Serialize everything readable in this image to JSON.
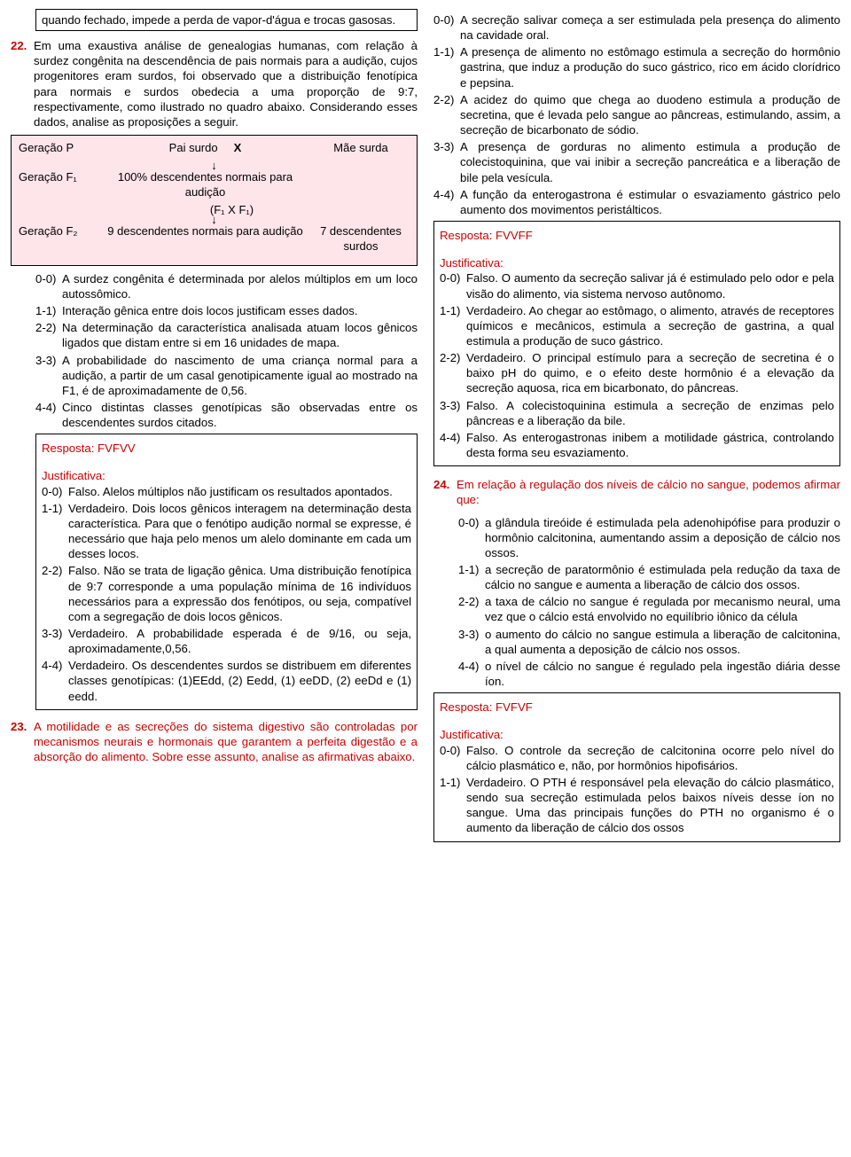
{
  "leftover_fragment": "quando fechado, impede a perda de vapor-d'água e trocas gasosas.",
  "q22": {
    "num": "22.",
    "stem": "Em uma exaustiva análise de genealogias humanas, com relação à surdez congênita na descendência de pais normais para a audição, cujos progenitores eram surdos, foi observado que a distribuição fenotípica para normais e surdos obedecia a uma proporção de 9:7, respectivamente, como ilustrado no quadro abaixo. Considerando esses dados, analise as proposições a seguir.",
    "cross": {
      "rowP_label": "Geração P",
      "rowP_left": "Pai surdo",
      "rowP_x": "X",
      "rowP_right": "Mãe surda",
      "rowF1_label": "Geração F₁",
      "rowF1_text": "100% descendentes normais para audição",
      "rowF1_cross": "(F₁ X F₁)",
      "rowF2_label": "Geração F₂",
      "rowF2_left": "9 descendentes normais para audição",
      "rowF2_right": "7 descendentes surdos"
    },
    "items": [
      {
        "lbl": "0-0)",
        "txt": "A surdez congênita é determinada por alelos múltiplos em um loco autossômico."
      },
      {
        "lbl": "1-1)",
        "txt": "Interação gênica entre dois locos justificam esses dados."
      },
      {
        "lbl": "2-2)",
        "txt": "Na determinação da característica analisada atuam locos gênicos ligados que distam entre si em 16 unidades de mapa."
      },
      {
        "lbl": "3-3)",
        "txt": "A probabilidade do nascimento de uma criança normal para a audição, a partir de um casal genotipicamente igual ao mostrado na F1, é de aproximadamente de 0,56."
      },
      {
        "lbl": "4-4)",
        "txt": "Cinco distintas classes genotípicas são observadas entre os descendentes surdos citados."
      }
    ],
    "resposta": "Resposta: FVFVV",
    "just_label": "Justificativa:",
    "justs": [
      {
        "lbl": "0-0)",
        "txt": "Falso. Alelos múltiplos não justificam os resultados apontados."
      },
      {
        "lbl": "1-1)",
        "txt": "Verdadeiro. Dois locos gênicos interagem na determinação desta característica. Para que o fenótipo audição normal se expresse, é necessário que haja pelo menos um alelo dominante em cada um desses locos."
      },
      {
        "lbl": "2-2)",
        "txt": "Falso. Não se trata de ligação gênica. Uma distribuição fenotípica de 9:7 corresponde a uma população mínima de 16 indivíduos necessários para a expressão dos fenótipos, ou seja, compatível com a segregação de dois locos gênicos."
      },
      {
        "lbl": "3-3)",
        "txt": "Verdadeiro. A probabilidade esperada é de 9/16, ou seja, aproximadamente,0,56."
      },
      {
        "lbl": "4-4)",
        "txt": "Verdadeiro. Os descendentes surdos se distribuem em diferentes classes genotípicas: (1)EEdd, (2) Eedd, (1) eeDD, (2) eeDd e (1) eedd."
      }
    ]
  },
  "q23": {
    "num": "23.",
    "stem": "A motilidade e as secreções do sistema digestivo são controladas por mecanismos neurais e hormonais que garantem a perfeita digestão e a absorção do alimento. Sobre esse assunto, analise as afirmativas abaixo.",
    "items": [
      {
        "lbl": "0-0)",
        "txt": "A secreção salivar começa a ser estimulada pela presença do alimento na cavidade oral."
      },
      {
        "lbl": "1-1)",
        "txt": "A presença de alimento no estômago estimula a secreção do hormônio gastrina, que induz a produção do suco gástrico, rico em ácido clorídrico e pepsina."
      },
      {
        "lbl": "2-2)",
        "txt": "A acidez do quimo que chega ao duodeno estimula a produção de secretina, que é levada pelo sangue ao pâncreas, estimulando, assim, a secreção de bicarbonato de sódio."
      },
      {
        "lbl": "3-3)",
        "txt": "A presença de gorduras no alimento estimula a produção de colecistoquinina, que vai inibir a secreção pancreática e a liberação de bile pela vesícula."
      },
      {
        "lbl": "4-4)",
        "txt": "A função da enterogastrona é estimular o esvaziamento gástrico pelo aumento dos movimentos peristálticos."
      }
    ],
    "resposta": "Resposta: FVVFF",
    "just_label": "Justificativa:",
    "justs": [
      {
        "lbl": "0-0)",
        "txt": "Falso. O aumento da secreção salivar já é estimulado pelo odor e pela visão do alimento, via sistema nervoso autônomo."
      },
      {
        "lbl": "1-1)",
        "txt": "Verdadeiro. Ao chegar ao estômago, o alimento, através de receptores químicos e mecânicos, estimula a secreção de gastrina, a qual estimula a produção de suco gástrico."
      },
      {
        "lbl": "2-2)",
        "txt": "Verdadeiro. O principal estímulo para a secreção de secretina é o baixo pH do quimo, e o efeito deste hormônio é a elevação da secreção aquosa, rica em bicarbonato, do pâncreas."
      },
      {
        "lbl": "3-3)",
        "txt": "Falso. A colecistoquinina estimula a secreção de enzimas pelo pâncreas e a liberação da bile."
      },
      {
        "lbl": "4-4)",
        "txt": "Falso. As enterogastronas inibem a motilidade gástrica, controlando desta forma seu esvaziamento."
      }
    ]
  },
  "q24": {
    "num": "24.",
    "stem": "Em relação à regulação dos níveis de cálcio no sangue, podemos afirmar que:",
    "items": [
      {
        "lbl": "0-0)",
        "txt": "a glândula tireóide é estimulada pela adenohipófise para produzir o hormônio calcitonina, aumentando assim a deposição de cálcio nos ossos."
      },
      {
        "lbl": "1-1)",
        "txt": "a secreção de paratormônio é estimulada pela redução da taxa de cálcio no sangue e aumenta a liberação de cálcio dos ossos."
      },
      {
        "lbl": "2-2)",
        "txt": "a taxa de cálcio no sangue é regulada por mecanismo neural, uma vez que o cálcio está envolvido no equilíbrio iônico da célula"
      },
      {
        "lbl": "3-3)",
        "txt": "o aumento do cálcio no sangue estimula a liberação de calcitonina, a qual aumenta a deposição de cálcio nos ossos."
      },
      {
        "lbl": "4-4)",
        "txt": "o nível de cálcio no sangue é regulado pela ingestão diária desse íon."
      }
    ],
    "resposta": "Resposta: FVFVF",
    "just_label": "Justificativa:",
    "justs": [
      {
        "lbl": "0-0)",
        "txt": "Falso. O controle da secreção de calcitonina ocorre pelo nível do cálcio plasmático e, não, por hormônios hipofisários."
      },
      {
        "lbl": "1-1)",
        "txt": "Verdadeiro. O PTH é responsável pela elevação do cálcio plasmático, sendo sua secreção estimulada pelos baixos níveis desse íon no sangue. Uma das principais funções do PTH no organismo é o aumento da liberação de cálcio dos ossos"
      }
    ]
  }
}
